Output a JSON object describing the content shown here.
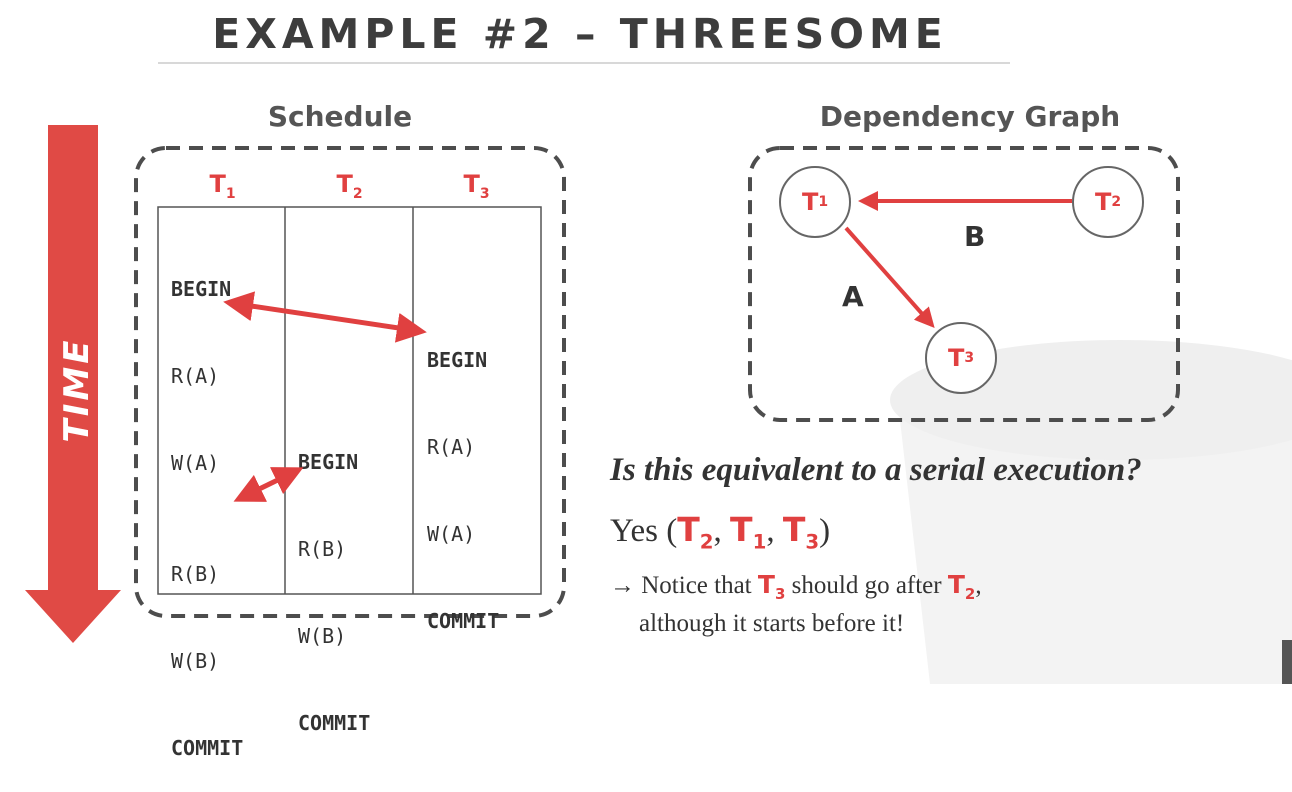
{
  "title": "EXAMPLE #2 – THREESOME",
  "time_label": "TIME",
  "schedule": {
    "title": "Schedule",
    "columns": [
      {
        "name": "T",
        "sub": "1"
      },
      {
        "name": "T",
        "sub": "2"
      },
      {
        "name": "T",
        "sub": "3"
      }
    ],
    "t1_ops_top": [
      "BEGIN",
      "R(A)",
      "W(A)"
    ],
    "t1_ops_bottom": [
      "R(B)",
      "W(B)",
      "COMMIT"
    ],
    "t2_ops": [
      "BEGIN",
      "R(B)",
      "W(B)",
      "COMMIT"
    ],
    "t3_ops": [
      "BEGIN",
      "R(A)",
      "W(A)",
      "COMMIT"
    ]
  },
  "graph": {
    "title": "Dependency Graph",
    "nodes": [
      {
        "name": "T",
        "sub": "1"
      },
      {
        "name": "T",
        "sub": "2"
      },
      {
        "name": "T",
        "sub": "3"
      }
    ],
    "edges": [
      {
        "from": "T2",
        "to": "T1",
        "label": "B"
      },
      {
        "from": "T1",
        "to": "T3",
        "label": "A"
      }
    ]
  },
  "question": "Is this equivalent to a serial execution?",
  "answer": {
    "prefix": "Yes (",
    "order": [
      {
        "name": "T",
        "sub": "2"
      },
      {
        "name": "T",
        "sub": "1"
      },
      {
        "name": "T",
        "sub": "3"
      }
    ],
    "separator": ", ",
    "suffix": ")"
  },
  "note": {
    "arrow": "→",
    "line1_a": "Notice that ",
    "t3": {
      "name": "T",
      "sub": "3"
    },
    "line1_b": " should go after ",
    "t2": {
      "name": "T",
      "sub": "2"
    },
    "line1_c": ",",
    "line2": "although it starts before it!"
  },
  "colors": {
    "accent": "#e04040",
    "dashed_border": "#4d4d4d",
    "text": "#333333"
  }
}
